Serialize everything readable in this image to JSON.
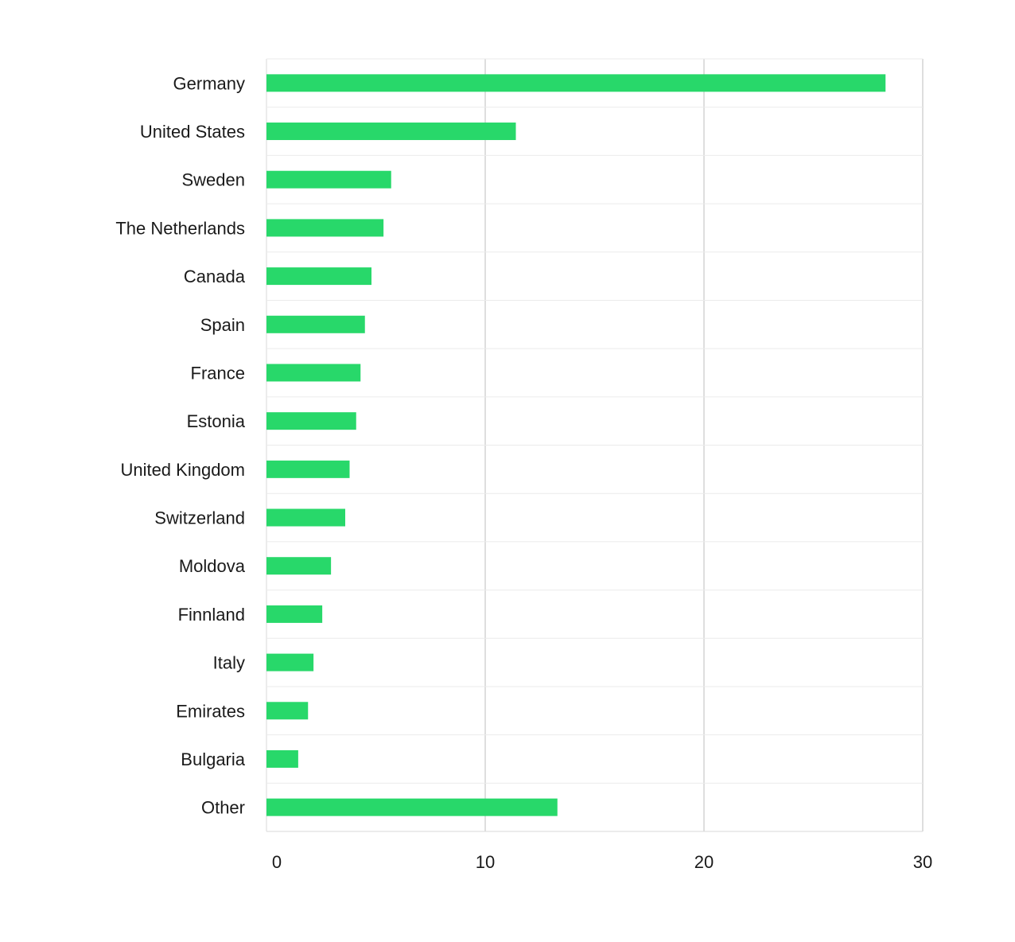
{
  "chart_data": {
    "type": "bar",
    "orientation": "horizontal",
    "categories": [
      "Germany",
      "United States",
      "Sweden",
      "The Netherlands",
      "Canada",
      "Spain",
      "France",
      "Estonia",
      "United Kingdom",
      "Switzerland",
      "Moldova",
      "Finnland",
      "Italy",
      "Emirates",
      "Bulgaria",
      "Other"
    ],
    "values": [
      28.3,
      11.4,
      5.7,
      5.35,
      4.8,
      4.5,
      4.3,
      4.1,
      3.8,
      3.6,
      2.95,
      2.55,
      2.15,
      1.9,
      1.45,
      13.3
    ],
    "xlim": [
      0,
      30
    ],
    "xticks": [
      0,
      10,
      20,
      30
    ],
    "title": "",
    "xlabel": "",
    "ylabel": "",
    "grid": true,
    "legend": "none",
    "colors": {
      "bar": "#28d86a",
      "grid": "#bdbdbd",
      "row_divider": "#ebebeb",
      "axis": "#d9d9d9",
      "text": "#1a1a1a"
    }
  }
}
